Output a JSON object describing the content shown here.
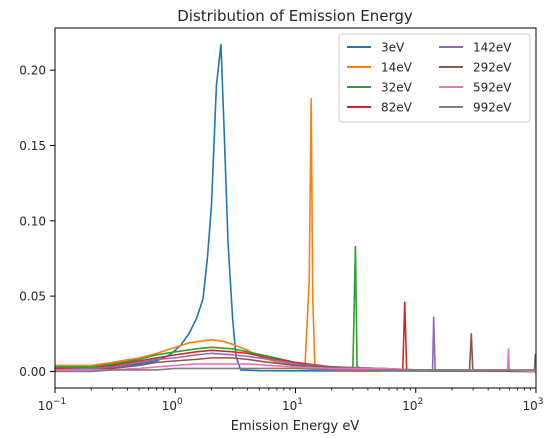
{
  "chart_data": {
    "type": "line",
    "title": "Distribution of Emission Energy",
    "xlabel": "Emission Energy eV",
    "ylabel": "",
    "xscale": "log",
    "xlim": [
      0.1,
      1000
    ],
    "ylim": [
      -0.011,
      0.228
    ],
    "x_ticks": [
      {
        "value": 0.1,
        "base": "10",
        "exp": "−1"
      },
      {
        "value": 1,
        "base": "10",
        "exp": "0"
      },
      {
        "value": 10,
        "base": "10",
        "exp": "1"
      },
      {
        "value": 100,
        "base": "10",
        "exp": "2"
      },
      {
        "value": 1000,
        "base": "10",
        "exp": "3"
      }
    ],
    "y_ticks": [
      {
        "value": 0.0,
        "label": "0.00"
      },
      {
        "value": 0.05,
        "label": "0.05"
      },
      {
        "value": 0.1,
        "label": "0.10"
      },
      {
        "value": 0.15,
        "label": "0.15"
      },
      {
        "value": 0.2,
        "label": "0.20"
      }
    ],
    "grid": false,
    "legend_position": "top-right",
    "legend_columns": 2,
    "series": [
      {
        "name": "3eV",
        "color": "#1f77b4",
        "points": [
          [
            0.1,
            0.002
          ],
          [
            0.2,
            0.002
          ],
          [
            0.3,
            0.003
          ],
          [
            0.5,
            0.005
          ],
          [
            0.7,
            0.007
          ],
          [
            0.9,
            0.011
          ],
          [
            1.1,
            0.017
          ],
          [
            1.3,
            0.025
          ],
          [
            1.5,
            0.035
          ],
          [
            1.7,
            0.048
          ],
          [
            1.85,
            0.075
          ],
          [
            2.0,
            0.11
          ],
          [
            2.2,
            0.19
          ],
          [
            2.4,
            0.217
          ],
          [
            2.55,
            0.16
          ],
          [
            2.75,
            0.085
          ],
          [
            3.0,
            0.035
          ],
          [
            3.2,
            0.01
          ],
          [
            3.5,
            0.001
          ],
          [
            5,
            0.0005
          ],
          [
            1000,
            0.0
          ]
        ]
      },
      {
        "name": "14eV",
        "color": "#ff7f0e",
        "points": [
          [
            0.1,
            0.004
          ],
          [
            0.2,
            0.004
          ],
          [
            0.3,
            0.006
          ],
          [
            0.5,
            0.009
          ],
          [
            0.7,
            0.012
          ],
          [
            1.0,
            0.016
          ],
          [
            1.3,
            0.019
          ],
          [
            1.6,
            0.02
          ],
          [
            2.0,
            0.021
          ],
          [
            2.5,
            0.02
          ],
          [
            3,
            0.018
          ],
          [
            4,
            0.014
          ],
          [
            5,
            0.01
          ],
          [
            7,
            0.006
          ],
          [
            10,
            0.004
          ],
          [
            12,
            0.004
          ],
          [
            13.0,
            0.06
          ],
          [
            13.5,
            0.181
          ],
          [
            13.9,
            0.05
          ],
          [
            14.5,
            0.002
          ],
          [
            20,
            0.001
          ],
          [
            1000,
            0.0
          ]
        ]
      },
      {
        "name": "32eV",
        "color": "#2ca02c",
        "points": [
          [
            0.1,
            0.003
          ],
          [
            0.2,
            0.003
          ],
          [
            0.3,
            0.005
          ],
          [
            0.5,
            0.008
          ],
          [
            0.7,
            0.011
          ],
          [
            1.0,
            0.013
          ],
          [
            1.5,
            0.015
          ],
          [
            2.0,
            0.016
          ],
          [
            3,
            0.015
          ],
          [
            4,
            0.013
          ],
          [
            6,
            0.01
          ],
          [
            10,
            0.006
          ],
          [
            15,
            0.004
          ],
          [
            20,
            0.002
          ],
          [
            25,
            0.001
          ],
          [
            30,
            0.002
          ],
          [
            31.5,
            0.083
          ],
          [
            32.5,
            0.003
          ],
          [
            40,
            0.001
          ],
          [
            1000,
            0.0
          ]
        ]
      },
      {
        "name": "82eV",
        "color": "#d62728",
        "points": [
          [
            0.1,
            0.002
          ],
          [
            0.2,
            0.002
          ],
          [
            0.3,
            0.004
          ],
          [
            0.5,
            0.007
          ],
          [
            0.7,
            0.009
          ],
          [
            1.0,
            0.011
          ],
          [
            1.5,
            0.013
          ],
          [
            2.0,
            0.014
          ],
          [
            3,
            0.013
          ],
          [
            4,
            0.012
          ],
          [
            6,
            0.009
          ],
          [
            10,
            0.006
          ],
          [
            20,
            0.003
          ],
          [
            40,
            0.002
          ],
          [
            60,
            0.001
          ],
          [
            78,
            0.001
          ],
          [
            81,
            0.046
          ],
          [
            84,
            0.001
          ],
          [
            1000,
            0.0
          ]
        ]
      },
      {
        "name": "142eV",
        "color": "#9467bd",
        "points": [
          [
            0.1,
            0.001
          ],
          [
            0.2,
            0.002
          ],
          [
            0.3,
            0.003
          ],
          [
            0.5,
            0.006
          ],
          [
            0.7,
            0.008
          ],
          [
            1.0,
            0.009
          ],
          [
            1.5,
            0.011
          ],
          [
            2.0,
            0.012
          ],
          [
            3,
            0.011
          ],
          [
            4,
            0.01
          ],
          [
            6,
            0.008
          ],
          [
            10,
            0.005
          ],
          [
            20,
            0.003
          ],
          [
            50,
            0.002
          ],
          [
            100,
            0.001
          ],
          [
            138,
            0.001
          ],
          [
            141,
            0.036
          ],
          [
            145,
            0.001
          ],
          [
            1000,
            0.0
          ]
        ]
      },
      {
        "name": "292eV",
        "color": "#8c564b",
        "points": [
          [
            0.1,
            0.001
          ],
          [
            0.2,
            0.001
          ],
          [
            0.3,
            0.002
          ],
          [
            0.5,
            0.004
          ],
          [
            0.7,
            0.006
          ],
          [
            1.0,
            0.007
          ],
          [
            1.5,
            0.008
          ],
          [
            2.0,
            0.009
          ],
          [
            3,
            0.009
          ],
          [
            4,
            0.008
          ],
          [
            6,
            0.006
          ],
          [
            10,
            0.004
          ],
          [
            20,
            0.003
          ],
          [
            50,
            0.002
          ],
          [
            100,
            0.001
          ],
          [
            280,
            0.001
          ],
          [
            290,
            0.025
          ],
          [
            298,
            0.001
          ],
          [
            1000,
            0.0
          ]
        ]
      },
      {
        "name": "592eV",
        "color": "#e377c2",
        "points": [
          [
            0.1,
            0.001
          ],
          [
            0.2,
            0.001
          ],
          [
            0.3,
            0.001
          ],
          [
            0.5,
            0.002
          ],
          [
            0.7,
            0.003
          ],
          [
            1.0,
            0.004
          ],
          [
            1.5,
            0.005
          ],
          [
            2.0,
            0.005
          ],
          [
            3,
            0.005
          ],
          [
            4,
            0.005
          ],
          [
            6,
            0.004
          ],
          [
            10,
            0.003
          ],
          [
            20,
            0.002
          ],
          [
            50,
            0.002
          ],
          [
            100,
            0.001
          ],
          [
            300,
            0.001
          ],
          [
            580,
            0.001
          ],
          [
            590,
            0.015
          ],
          [
            600,
            0.001
          ],
          [
            1000,
            0.0
          ]
        ]
      },
      {
        "name": "992eV",
        "color": "#7f7f7f",
        "points": [
          [
            0.1,
            0.0
          ],
          [
            0.2,
            0.0
          ],
          [
            0.3,
            0.001
          ],
          [
            0.5,
            0.001
          ],
          [
            0.7,
            0.001
          ],
          [
            1.0,
            0.002
          ],
          [
            1.5,
            0.002
          ],
          [
            2.0,
            0.002
          ],
          [
            3,
            0.002
          ],
          [
            4,
            0.002
          ],
          [
            6,
            0.002
          ],
          [
            10,
            0.002
          ],
          [
            20,
            0.001
          ],
          [
            50,
            0.001
          ],
          [
            100,
            0.001
          ],
          [
            300,
            0.001
          ],
          [
            600,
            0.001
          ],
          [
            970,
            0.001
          ],
          [
            985,
            0.011
          ],
          [
            1000,
            0.011
          ]
        ]
      }
    ]
  }
}
